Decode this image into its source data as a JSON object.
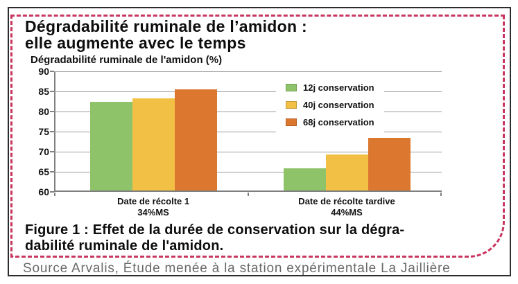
{
  "header": {
    "title_line1": "Dégradabilité ruminale de l’amidon :",
    "title_line2": "elle augmente avec le temps"
  },
  "chart_data": {
    "type": "bar",
    "title": "Dégradabilité ruminale de l'amidon : elle augmente avec le temps",
    "axis_label": "Dégradabilité ruminale de l'amidon (%)",
    "ylim": [
      60,
      90
    ],
    "yticks": [
      60,
      65,
      70,
      75,
      80,
      85,
      90
    ],
    "grid": true,
    "legend_position": "top-right",
    "categories": [
      {
        "label": "Date de récolte 1",
        "sublabel": "34%MS"
      },
      {
        "label": "Date de récolte tardive",
        "sublabel": "44%MS"
      }
    ],
    "series": [
      {
        "name": "12j conservation",
        "color": "#8FC36A",
        "values": [
          82.4,
          65.9
        ]
      },
      {
        "name": "40j conservation",
        "color": "#F2C045",
        "values": [
          83.2,
          69.3
        ]
      },
      {
        "name": "68j conservation",
        "color": "#DC772F",
        "values": [
          85.6,
          73.4
        ]
      }
    ]
  },
  "caption": {
    "line1": "Figure 1 : Effet de la durée de conservation sur la dégra-",
    "line2": "dabilité ruminale de l'amidon."
  },
  "source": "Source Arvalis, Étude menée à la station expérimentale La Jaillière",
  "colors": {
    "dashed_border": "#C8355F",
    "frame": "#2c2c2c",
    "gridline": "#9a9a9a",
    "axis": "#7f7f7f",
    "source_text": "#696969"
  }
}
